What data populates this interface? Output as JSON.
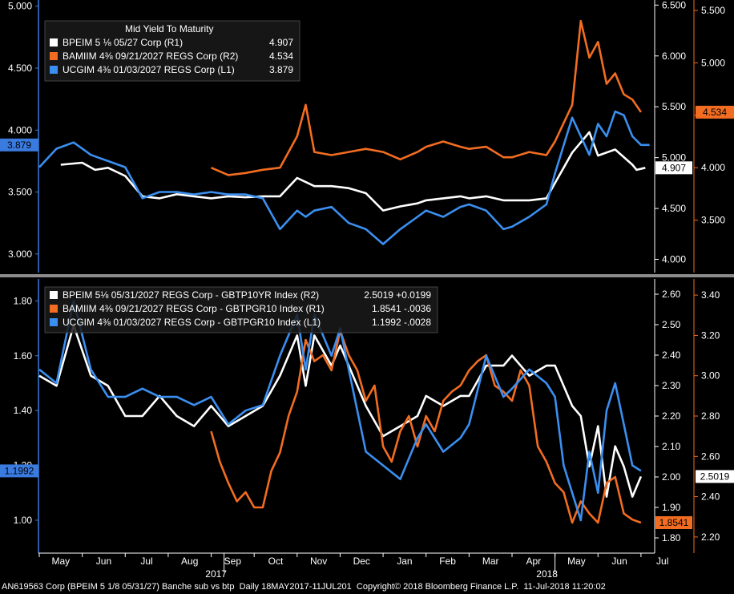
{
  "chart_data": [
    {
      "type": "line",
      "title": "Mid Yield To Maturity",
      "legend_position": "top-left",
      "axes": {
        "L1": {
          "ticks": [
            3.0,
            3.5,
            4.0,
            4.5,
            5.0
          ],
          "labels": [
            "3.000",
            "3.500",
            "4.000",
            "4.500",
            "5.000"
          ],
          "ylim": [
            2.85,
            5.05
          ]
        },
        "R1": {
          "ticks": [
            4.0,
            4.5,
            5.0,
            5.5,
            6.0,
            6.5
          ],
          "labels": [
            "4.000",
            "4.500",
            "5.000",
            "5.500",
            "6.000",
            "6.500"
          ],
          "ylim": [
            3.87,
            6.55
          ]
        },
        "R2": {
          "ticks": [
            3.5,
            4.0,
            4.5,
            5.0,
            5.5
          ],
          "labels": [
            "3.500",
            "4.000",
            "4.500",
            "5.000",
            "5.500"
          ],
          "ylim": [
            3.0,
            5.6
          ]
        }
      },
      "series": [
        {
          "name": "BPEIM 5 1/8 05/27 Corp (R1)",
          "label": "BPEIM 5 ⅛ 05/27 Corp (R1)",
          "last": "4.907",
          "axis": "R1",
          "color": "#ffffff",
          "x": [
            0.5,
            1,
            1.3,
            1.6,
            2,
            2.4,
            2.8,
            3.2,
            3.6,
            4,
            4.4,
            4.8,
            5.2,
            5.6,
            6,
            6.4,
            6.8,
            7.2,
            7.6,
            8,
            8.4,
            8.8,
            9,
            9.4,
            9.8,
            10,
            10.4,
            10.8,
            11,
            11.4,
            11.8,
            12,
            12.4,
            12.8,
            13,
            13.4,
            13.8,
            13.9,
            14.1
          ],
          "y": [
            4.93,
            4.95,
            4.88,
            4.9,
            4.82,
            4.62,
            4.6,
            4.64,
            4.62,
            4.6,
            4.62,
            4.61,
            4.62,
            4.62,
            4.8,
            4.72,
            4.72,
            4.7,
            4.65,
            4.48,
            4.52,
            4.55,
            4.58,
            4.6,
            4.62,
            4.6,
            4.62,
            4.58,
            4.58,
            4.58,
            4.6,
            4.75,
            5.05,
            5.25,
            5.02,
            5.08,
            4.93,
            4.88,
            4.9
          ]
        },
        {
          "name": "BAMIIM 4 3/8 09/21/2027 REGS Corp (R2)",
          "label": "BAMIIM 4⅜ 09/21/2027 REGS Corp (R2)",
          "last": "4.534",
          "axis": "R2",
          "color": "#f26d21",
          "x": [
            4,
            4.4,
            4.8,
            5.2,
            5.6,
            6,
            6.2,
            6.4,
            6.8,
            7.2,
            7.6,
            8,
            8.4,
            8.8,
            9,
            9.4,
            9.8,
            10,
            10.4,
            10.8,
            11,
            11.4,
            11.8,
            12,
            12.4,
            12.6,
            12.8,
            13,
            13.2,
            13.4,
            13.6,
            13.8,
            14
          ],
          "y": [
            4.0,
            3.93,
            3.95,
            3.98,
            4.0,
            4.3,
            4.6,
            4.15,
            4.12,
            4.15,
            4.18,
            4.15,
            4.08,
            4.15,
            4.2,
            4.25,
            4.2,
            4.18,
            4.2,
            4.1,
            4.1,
            4.15,
            4.12,
            4.25,
            4.6,
            5.4,
            5.05,
            5.2,
            4.8,
            4.9,
            4.7,
            4.65,
            4.53
          ]
        },
        {
          "name": "UCGIM 4 3/8 01/03/2027 REGS Corp (L1)",
          "label": "UCGIM 4⅜ 01/03/2027 REGS Corp (L1)",
          "last": "3.879",
          "axis": "L1",
          "color": "#3b8ff0",
          "x": [
            0,
            0.4,
            0.8,
            1.2,
            1.6,
            2,
            2.4,
            2.8,
            3.2,
            3.6,
            4,
            4.4,
            4.8,
            5.2,
            5.6,
            6,
            6.2,
            6.4,
            6.8,
            7.2,
            7.6,
            8,
            8.4,
            8.8,
            9,
            9.4,
            9.8,
            10,
            10.4,
            10.8,
            11,
            11.4,
            11.8,
            12,
            12.4,
            12.8,
            13,
            13.2,
            13.4,
            13.6,
            13.8,
            14,
            14.2
          ],
          "y": [
            3.7,
            3.85,
            3.9,
            3.8,
            3.75,
            3.7,
            3.45,
            3.5,
            3.5,
            3.48,
            3.5,
            3.48,
            3.48,
            3.45,
            3.2,
            3.35,
            3.3,
            3.35,
            3.38,
            3.25,
            3.2,
            3.08,
            3.2,
            3.3,
            3.35,
            3.3,
            3.38,
            3.4,
            3.35,
            3.2,
            3.22,
            3.3,
            3.4,
            3.65,
            4.1,
            3.8,
            4.05,
            3.95,
            4.15,
            4.12,
            3.95,
            3.88,
            3.88
          ]
        }
      ]
    },
    {
      "type": "line",
      "legend_position": "top-left",
      "axes": {
        "L1": {
          "ticks": [
            1.0,
            1.2,
            1.4,
            1.6,
            1.8
          ],
          "labels": [
            "1.00",
            "1.20",
            "1.40",
            "1.60",
            "1.80"
          ],
          "ylim": [
            0.88,
            1.88
          ]
        },
        "R1": {
          "ticks": [
            1.8,
            1.9,
            2.0,
            2.1,
            2.2,
            2.3,
            2.4,
            2.5,
            2.6
          ],
          "labels": [
            "1.80",
            "1.90",
            "2.00",
            "2.10",
            "2.20",
            "2.30",
            "2.40",
            "2.50",
            "2.60"
          ],
          "ylim": [
            1.75,
            2.65
          ]
        },
        "R2": {
          "ticks": [
            2.2,
            2.4,
            2.6,
            2.8,
            3.0,
            3.2,
            3.4
          ],
          "labels": [
            "2.20",
            "2.40",
            "2.60",
            "2.80",
            "3.00",
            "3.20",
            "3.40"
          ],
          "ylim": [
            2.12,
            3.48
          ]
        }
      },
      "series": [
        {
          "name": "BPEIM 5 1/8 05/31/2027 REGS Corp - GBTP10YR Index (R2)",
          "label": "BPEIM 5⅛ 05/31/2027 REGS Corp - GBTP10YR Index (R2)",
          "last": "2.5019",
          "change": "+0.0199",
          "axis": "R2",
          "color": "#ffffff",
          "x": [
            0,
            0.4,
            0.8,
            1.2,
            1.6,
            2,
            2.4,
            2.8,
            3.2,
            3.6,
            4,
            4.4,
            4.8,
            5.2,
            5.6,
            6,
            6.2,
            6.4,
            6.8,
            7,
            7.2,
            7.6,
            8,
            8.4,
            8.8,
            9,
            9.4,
            9.8,
            10,
            10.4,
            10.8,
            11,
            11.4,
            11.8,
            12,
            12.4,
            12.6,
            12.8,
            13,
            13.2,
            13.4,
            13.6,
            13.8,
            14
          ],
          "y": [
            3.0,
            2.95,
            3.25,
            3.0,
            2.95,
            2.8,
            2.8,
            2.9,
            2.8,
            2.75,
            2.85,
            2.75,
            2.8,
            2.85,
            3.0,
            3.2,
            2.95,
            3.2,
            3.05,
            3.15,
            3.05,
            2.85,
            2.7,
            2.75,
            2.8,
            2.9,
            2.85,
            2.9,
            2.9,
            3.05,
            3.05,
            3.1,
            3.0,
            3.05,
            3.05,
            2.85,
            2.8,
            2.55,
            2.75,
            2.4,
            2.65,
            2.55,
            2.4,
            2.5
          ]
        },
        {
          "name": "BAMIIM 4 3/8 09/21/2027 REGS Corp - GBTPGR10 Index (R1)",
          "label": "BAMIIM 4⅜ 09/21/2027 REGS Corp - GBTPGR10 Index (R1)",
          "last": "1.8541",
          "change": "-.0036",
          "axis": "R1",
          "color": "#f26d21",
          "x": [
            4,
            4.2,
            4.4,
            4.6,
            4.8,
            5,
            5.2,
            5.4,
            5.6,
            5.8,
            6,
            6.2,
            6.4,
            6.6,
            6.8,
            7,
            7.2,
            7.4,
            7.6,
            7.8,
            8,
            8.2,
            8.4,
            8.6,
            8.8,
            9,
            9.2,
            9.4,
            9.6,
            9.8,
            10,
            10.2,
            10.4,
            10.6,
            10.8,
            11,
            11.2,
            11.4,
            11.6,
            11.8,
            12,
            12.2,
            12.4,
            12.6,
            12.8,
            13,
            13.2,
            13.4,
            13.6,
            13.8,
            14
          ],
          "y": [
            2.15,
            2.05,
            1.98,
            1.92,
            1.95,
            1.9,
            1.9,
            2.02,
            2.08,
            2.2,
            2.28,
            2.45,
            2.38,
            2.4,
            2.35,
            2.48,
            2.4,
            2.35,
            2.25,
            2.3,
            2.1,
            2.05,
            2.15,
            2.2,
            2.1,
            2.2,
            2.15,
            2.25,
            2.28,
            2.3,
            2.35,
            2.38,
            2.4,
            2.3,
            2.28,
            2.25,
            2.35,
            2.3,
            2.1,
            2.05,
            1.98,
            1.95,
            1.85,
            1.92,
            1.88,
            1.85,
            1.98,
            2.0,
            1.88,
            1.86,
            1.85
          ]
        },
        {
          "name": "UCGIM 4 3/8 01/03/2027 REGS Corp - GBTPGR10 Index (L1)",
          "label": "UCGIM 4⅜ 01/03/2027 REGS Corp - GBTPGR10 Index (L1)",
          "last": "1.1992",
          "change": "-.0028",
          "axis": "L1",
          "color": "#3b8ff0",
          "x": [
            0,
            0.4,
            0.8,
            1.2,
            1.6,
            2,
            2.4,
            2.8,
            3.2,
            3.6,
            4,
            4.4,
            4.8,
            5.2,
            5.6,
            6,
            6.2,
            6.4,
            6.8,
            7,
            7.2,
            7.6,
            8,
            8.4,
            8.8,
            9,
            9.4,
            9.8,
            10,
            10.4,
            10.8,
            11,
            11.4,
            11.8,
            12,
            12.2,
            12.4,
            12.6,
            12.8,
            13,
            13.2,
            13.4,
            13.6,
            13.8,
            14
          ],
          "y": [
            1.55,
            1.5,
            1.8,
            1.55,
            1.45,
            1.45,
            1.48,
            1.45,
            1.45,
            1.42,
            1.45,
            1.35,
            1.4,
            1.42,
            1.6,
            1.75,
            1.55,
            1.75,
            1.6,
            1.7,
            1.55,
            1.25,
            1.2,
            1.15,
            1.3,
            1.35,
            1.25,
            1.3,
            1.35,
            1.6,
            1.45,
            1.48,
            1.55,
            1.5,
            1.45,
            1.2,
            1.1,
            1.0,
            1.25,
            1.1,
            1.4,
            1.5,
            1.35,
            1.2,
            1.18
          ]
        }
      ]
    }
  ],
  "x_axis": {
    "months": [
      "May",
      "Jun",
      "Jul",
      "Aug",
      "Sep",
      "Oct",
      "Nov",
      "Dec",
      "Jan",
      "Feb",
      "Mar",
      "Apr",
      "May",
      "Jun",
      "Jul"
    ],
    "years": [
      {
        "label": "2017",
        "at": 4.3
      },
      {
        "label": "2018",
        "at": 12.0
      }
    ]
  },
  "footer": {
    "text": "AN619563 Corp (BPEIM 5 1/8 05/31/27) Banche sub vs btp  Daily 18MAY2017-11JUL201  Copyright© 2018 Bloomberg Finance L.P.  11-Jul-2018 11:20:02"
  }
}
